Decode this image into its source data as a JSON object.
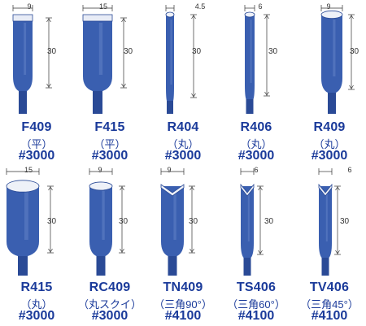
{
  "items": [
    {
      "code": "F409",
      "shape": "（平）",
      "grit": "#3000",
      "width_dim": "9",
      "height_dim": "30",
      "profile": "flat"
    },
    {
      "code": "F415",
      "shape": "（平）",
      "grit": "#3000",
      "width_dim": "15",
      "height_dim": "30",
      "profile": "flat"
    },
    {
      "code": "R404",
      "shape": "（丸）",
      "grit": "#3000",
      "width_dim": "4.5",
      "height_dim": "30",
      "profile": "round"
    },
    {
      "code": "R406",
      "shape": "（丸）",
      "grit": "#3000",
      "width_dim": "6",
      "height_dim": "30",
      "profile": "round"
    },
    {
      "code": "R409",
      "shape": "（丸）",
      "grit": "#3000",
      "width_dim": "9",
      "height_dim": "30",
      "profile": "round"
    },
    {
      "code": "R415",
      "shape": "（丸）",
      "grit": "#3000",
      "width_dim": "15",
      "height_dim": "30",
      "profile": "round"
    },
    {
      "code": "RC409",
      "shape": "（丸スクイ）",
      "grit": "#3000",
      "width_dim": "9",
      "height_dim": "30",
      "profile": "scoop"
    },
    {
      "code": "TN409",
      "shape": "（三角90°）",
      "grit": "#4100",
      "width_dim": "9",
      "height_dim": "30",
      "profile": "tri"
    },
    {
      "code": "TS406",
      "shape": "（三角60°）",
      "grit": "#4100",
      "width_dim": "6",
      "height_dim": "30",
      "profile": "tri"
    },
    {
      "code": "TV406",
      "shape": "（三角45°）",
      "grit": "#4100",
      "width_dim": "6",
      "height_dim": "30",
      "profile": "tri"
    }
  ],
  "colors": {
    "stone": "#3a5fb0",
    "stone_dark": "#2a4a96",
    "stone_light": "#7a98d4",
    "text": "#1a3a9a"
  }
}
